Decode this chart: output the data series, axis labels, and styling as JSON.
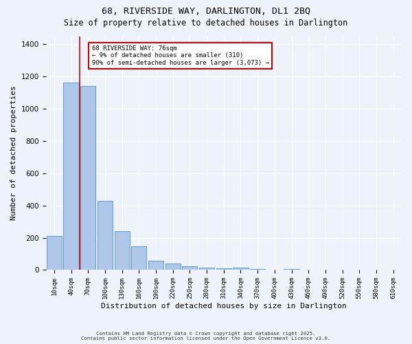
{
  "title1": "68, RIVERSIDE WAY, DARLINGTON, DL1 2BQ",
  "title2": "Size of property relative to detached houses in Darlington",
  "xlabel": "Distribution of detached houses by size in Darlington",
  "ylabel": "Number of detached properties",
  "bar_labels": [
    "10sqm",
    "40sqm",
    "70sqm",
    "100sqm",
    "130sqm",
    "160sqm",
    "190sqm",
    "220sqm",
    "250sqm",
    "280sqm",
    "310sqm",
    "340sqm",
    "370sqm",
    "400sqm",
    "430sqm",
    "460sqm",
    "490sqm",
    "520sqm",
    "550sqm",
    "580sqm",
    "610sqm"
  ],
  "bar_values": [
    210,
    1160,
    1140,
    430,
    240,
    145,
    57,
    42,
    22,
    14,
    11,
    14,
    5,
    0,
    8,
    0,
    0,
    0,
    0,
    0,
    0
  ],
  "bar_color": "#aec6e8",
  "bar_edgecolor": "#5b9bd5",
  "background_color": "#eef2fb",
  "grid_color": "#ffffff",
  "vline_color": "#cc0000",
  "annotation_text": "68 RIVERSIDE WAY: 76sqm\n← 9% of detached houses are smaller (310)\n90% of semi-detached houses are larger (3,073) →",
  "annotation_box_color": "#ffffff",
  "annotation_box_edgecolor": "#cc0000",
  "ylim": [
    0,
    1450
  ],
  "yticks": [
    0,
    200,
    400,
    600,
    800,
    1000,
    1200,
    1400
  ],
  "footer1": "Contains HM Land Registry data © Crown copyright and database right 2025.",
  "footer2": "Contains public sector information licensed under the Open Government Licence v3.0."
}
